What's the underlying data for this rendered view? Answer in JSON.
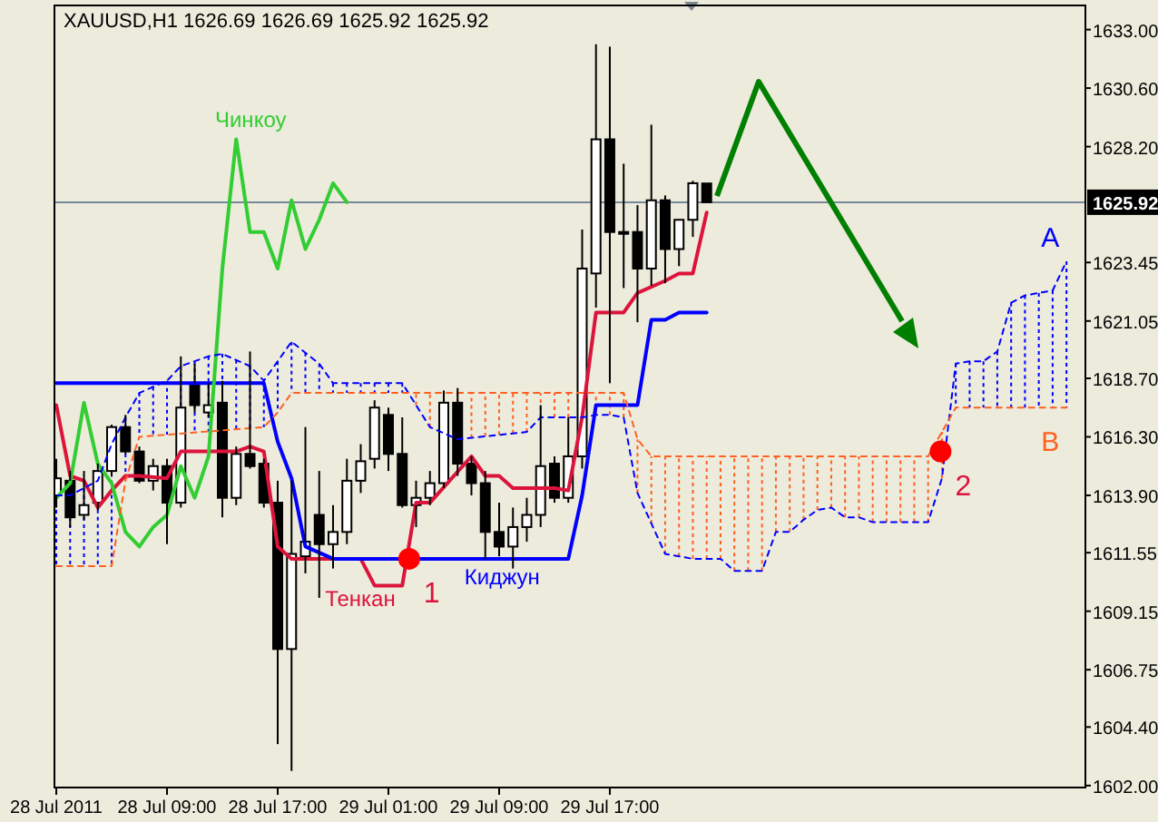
{
  "chart_data": {
    "type": "candlestick",
    "title": "XAUUSD,H1  1626.69 1626.69 1625.92 1625.92",
    "x": [
      "2011-07-28T01:00",
      "2011-07-28T02:00",
      "2011-07-28T03:00",
      "2011-07-28T04:00",
      "2011-07-28T05:00",
      "2011-07-28T06:00",
      "2011-07-28T07:00",
      "2011-07-28T08:00",
      "2011-07-28T09:00",
      "2011-07-28T10:00",
      "2011-07-28T11:00",
      "2011-07-28T12:00",
      "2011-07-28T13:00",
      "2011-07-28T14:00",
      "2011-07-28T15:00",
      "2011-07-28T16:00",
      "2011-07-28T17:00",
      "2011-07-28T18:00",
      "2011-07-28T19:00",
      "2011-07-28T20:00",
      "2011-07-28T21:00",
      "2011-07-28T22:00",
      "2011-07-28T23:00",
      "2011-07-29T00:00",
      "2011-07-29T01:00",
      "2011-07-29T02:00",
      "2011-07-29T03:00",
      "2011-07-29T04:00",
      "2011-07-29T05:00",
      "2011-07-29T06:00",
      "2011-07-29T07:00",
      "2011-07-29T08:00",
      "2011-07-29T09:00",
      "2011-07-29T10:00",
      "2011-07-29T11:00",
      "2011-07-29T12:00",
      "2011-07-29T13:00",
      "2011-07-29T14:00",
      "2011-07-29T15:00",
      "2011-07-29T16:00",
      "2011-07-29T17:00",
      "2011-07-29T18:00",
      "2011-07-29T19:00",
      "2011-07-29T20:00",
      "2011-07-29T21:00",
      "2011-07-29T22:00",
      "2011-07-29T23:00",
      "2011-07-30T00:00"
    ],
    "ohlc": [
      [
        1613.9,
        1615.4,
        1613.4,
        1614.6
      ],
      [
        1614.5,
        1614.9,
        1612.6,
        1613.0
      ],
      [
        1613.1,
        1614.9,
        1612.9,
        1613.5
      ],
      [
        1613.6,
        1615.2,
        1613.3,
        1614.9
      ],
      [
        1614.9,
        1616.8,
        1614.7,
        1616.7
      ],
      [
        1616.7,
        1617.2,
        1615.6,
        1615.7
      ],
      [
        1615.7,
        1615.9,
        1614.4,
        1614.5
      ],
      [
        1614.5,
        1615.4,
        1614.1,
        1615.1
      ],
      [
        1615.1,
        1615.4,
        1611.9,
        1613.6
      ],
      [
        1613.6,
        1619.6,
        1613.4,
        1617.5
      ],
      [
        1618.5,
        1619.3,
        1617.3,
        1617.6
      ],
      [
        1617.3,
        1618.5,
        1617.1,
        1617.6
      ],
      [
        1617.7,
        1618.6,
        1613.0,
        1613.8
      ],
      [
        1613.8,
        1615.9,
        1613.5,
        1615.6
      ],
      [
        1615.6,
        1619.8,
        1615.0,
        1615.1
      ],
      [
        1615.2,
        1615.4,
        1613.4,
        1613.6
      ],
      [
        1613.6,
        1614.5,
        1603.7,
        1607.6
      ],
      [
        1607.6,
        1614.5,
        1602.6,
        1611.5
      ],
      [
        1611.4,
        1616.7,
        1610.7,
        1612.0
      ],
      [
        1613.1,
        1614.9,
        1609.7,
        1611.9
      ],
      [
        1611.9,
        1613.5,
        1610.9,
        1612.4
      ],
      [
        1612.4,
        1615.4,
        1611.9,
        1614.5
      ],
      [
        1614.5,
        1616.0,
        1614.0,
        1615.3
      ],
      [
        1615.4,
        1617.8,
        1615.0,
        1617.5
      ],
      [
        1617.2,
        1617.5,
        1614.9,
        1615.6
      ],
      [
        1615.6,
        1617.1,
        1613.4,
        1613.5
      ],
      [
        1613.5,
        1614.5,
        1612.6,
        1613.8
      ],
      [
        1613.8,
        1614.9,
        1613.5,
        1614.4
      ],
      [
        1614.4,
        1618.2,
        1614.2,
        1617.7
      ],
      [
        1617.7,
        1618.3,
        1614.7,
        1615.2
      ],
      [
        1615.2,
        1615.5,
        1613.9,
        1614.4
      ],
      [
        1614.4,
        1614.9,
        1611.3,
        1612.4
      ],
      [
        1612.4,
        1613.6,
        1611.4,
        1611.8
      ],
      [
        1611.8,
        1613.4,
        1610.9,
        1612.6
      ],
      [
        1612.6,
        1613.8,
        1612.0,
        1613.1
      ],
      [
        1613.1,
        1617.6,
        1612.6,
        1615.1
      ],
      [
        1615.2,
        1615.5,
        1613.6,
        1613.8
      ],
      [
        1613.8,
        1617.1,
        1613.6,
        1615.5
      ],
      [
        1615.5,
        1624.8,
        1615.0,
        1623.2
      ],
      [
        1623.0,
        1632.4,
        1621.6,
        1628.5
      ],
      [
        1628.5,
        1632.3,
        1618.5,
        1624.7
      ],
      [
        1624.7,
        1627.5,
        1622.4,
        1624.7
      ],
      [
        1624.7,
        1625.8,
        1621.0,
        1623.2
      ],
      [
        1623.2,
        1629.1,
        1622.5,
        1626.0
      ],
      [
        1626.0,
        1626.2,
        1622.6,
        1624.0
      ],
      [
        1624.0,
        1625.2,
        1623.3,
        1625.2
      ],
      [
        1625.2,
        1626.8,
        1624.5,
        1626.7
      ],
      [
        1626.69,
        1626.69,
        1625.92,
        1625.92
      ]
    ],
    "series": [
      {
        "type": "line",
        "name": "Тенкан",
        "color": "#dc143c",
        "x": [
          "2011-07-28T01:00",
          "2011-07-28T02:00",
          "2011-07-28T03:00",
          "2011-07-28T04:00",
          "2011-07-28T05:00",
          "2011-07-28T06:00",
          "2011-07-28T07:00",
          "2011-07-28T09:00",
          "2011-07-28T10:00",
          "2011-07-28T14:00",
          "2011-07-28T15:00",
          "2011-07-28T16:00",
          "2011-07-28T17:00",
          "2011-07-28T18:00",
          "2011-07-28T23:00",
          "2011-07-29T00:00",
          "2011-07-29T02:00",
          "2011-07-29T03:00",
          "2011-07-29T04:00",
          "2011-07-29T07:00",
          "2011-07-29T08:00",
          "2011-07-29T09:00",
          "2011-07-29T10:00",
          "2011-07-29T13:00",
          "2011-07-29T14:00",
          "2011-07-29T15:00",
          "2011-07-29T16:00",
          "2011-07-29T18:00",
          "2011-07-29T19:00",
          "2011-07-29T21:00",
          "2011-07-29T22:00",
          "2011-07-29T23:00",
          "2011-07-30T00:00"
        ],
        "values": [
          1617.6,
          1614.7,
          1614.5,
          1613.4,
          1614.1,
          1614.7,
          1614.7,
          1614.6,
          1615.7,
          1615.7,
          1615.9,
          1615.7,
          1611.8,
          1611.3,
          1611.3,
          1610.2,
          1610.2,
          1613.6,
          1613.6,
          1615.5,
          1614.7,
          1614.7,
          1614.2,
          1614.2,
          1614.1,
          1617.1,
          1621.4,
          1621.4,
          1622.2,
          1622.7,
          1623.0,
          1623.0,
          1625.5
        ]
      },
      {
        "type": "line",
        "name": "Киджун",
        "color": "#0000ff",
        "x": [
          "2011-07-28T01:00",
          "2011-07-28T16:00",
          "2011-07-28T17:00",
          "2011-07-28T18:00",
          "2011-07-28T19:00",
          "2011-07-28T21:00",
          "2011-07-29T14:00",
          "2011-07-29T15:00",
          "2011-07-29T16:00",
          "2011-07-29T19:00",
          "2011-07-29T20:00",
          "2011-07-29T21:00",
          "2011-07-29T22:00",
          "2011-07-30T00:00"
        ],
        "values": [
          1618.5,
          1618.5,
          1616.1,
          1614.6,
          1611.8,
          1611.3,
          1611.3,
          1613.9,
          1617.6,
          1617.6,
          1621.1,
          1621.1,
          1621.4,
          1621.4
        ]
      },
      {
        "type": "line",
        "name": "Чинкоу",
        "color": "#32cd32",
        "x": [
          "2011-07-28T01:00",
          "2011-07-28T02:00",
          "2011-07-28T03:00",
          "2011-07-28T04:00",
          "2011-07-28T05:00",
          "2011-07-28T06:00",
          "2011-07-28T07:00",
          "2011-07-28T08:00",
          "2011-07-28T09:00",
          "2011-07-28T10:00",
          "2011-07-28T11:00",
          "2011-07-28T12:00",
          "2011-07-28T13:00",
          "2011-07-28T14:00",
          "2011-07-28T15:00",
          "2011-07-28T16:00",
          "2011-07-28T17:00",
          "2011-07-28T18:00",
          "2011-07-28T19:00",
          "2011-07-28T20:00",
          "2011-07-28T21:00",
          "2011-07-28T22:00"
        ],
        "values": [
          1613.8,
          1614.4,
          1617.7,
          1615.2,
          1614.4,
          1612.4,
          1611.8,
          1612.6,
          1613.1,
          1615.1,
          1613.8,
          1615.5,
          1623.2,
          1628.5,
          1624.7,
          1624.7,
          1623.2,
          1626.0,
          1624.0,
          1625.2,
          1626.7,
          1625.92
        ]
      },
      {
        "type": "line",
        "name": "A",
        "color": "#0000ff",
        "line_style": "dashed",
        "x": [
          "2011-07-28T01:00",
          "2011-07-28T02:00",
          "2011-07-28T04:00",
          "2011-07-28T05:00",
          "2011-07-28T06:00",
          "2011-07-28T07:00",
          "2011-07-28T09:00",
          "2011-07-28T10:00",
          "2011-07-28T12:00",
          "2011-07-28T13:00",
          "2011-07-28T15:00",
          "2011-07-28T16:00",
          "2011-07-28T18:00",
          "2011-07-28T20:00",
          "2011-07-28T21:00",
          "2011-07-29T02:00",
          "2011-07-29T04:00",
          "2011-07-29T06:00",
          "2011-07-29T11:00",
          "2011-07-29T12:00",
          "2011-07-29T15:00",
          "2011-07-29T16:00",
          "2011-07-29T17:00",
          "2011-07-29T18:00",
          "2011-07-29T19:00",
          "2011-07-29T21:00",
          "2011-07-29T23:00",
          "2011-07-30T01:00",
          "2011-07-30T02:00",
          "2011-07-30T04:00",
          "2011-07-30T05:00",
          "2011-07-30T06:00",
          "2011-07-30T07:00",
          "2011-07-30T08:00",
          "2011-07-30T09:00",
          "2011-07-30T10:00",
          "2011-07-30T11:00",
          "2011-07-30T12:00",
          "2011-07-30T16:00",
          "2011-07-30T17:00",
          "2011-07-30T18:00",
          "2011-07-30T19:00",
          "2011-07-30T20:00",
          "2011-07-30T21:00",
          "2011-07-30T22:00",
          "2011-07-30T23:00",
          "2011-07-31T00:00",
          "2011-07-31T01:00",
          "2011-07-31T02:00"
        ],
        "values": [
          1613.9,
          1613.9,
          1614.5,
          1616.0,
          1617.1,
          1618.1,
          1618.6,
          1619.2,
          1619.6,
          1619.7,
          1619.2,
          1618.6,
          1620.2,
          1619.3,
          1618.5,
          1618.5,
          1616.7,
          1616.2,
          1616.5,
          1617.1,
          1617.1,
          1617.2,
          1617.2,
          1617.1,
          1614.0,
          1611.5,
          1611.3,
          1611.3,
          1610.8,
          1610.8,
          1612.4,
          1612.4,
          1612.9,
          1613.3,
          1613.4,
          1613.0,
          1613.0,
          1612.8,
          1612.8,
          1614.6,
          1619.3,
          1619.4,
          1619.4,
          1619.8,
          1621.8,
          1622.1,
          1622.2,
          1622.3,
          1623.5
        ]
      },
      {
        "type": "line",
        "name": "B",
        "color": "#ff6020",
        "line_style": "dashed",
        "x": [
          "2011-07-28T01:00",
          "2011-07-28T05:00",
          "2011-07-28T06:00",
          "2011-07-28T07:00",
          "2011-07-28T16:00",
          "2011-07-28T17:00",
          "2011-07-28T18:00",
          "2011-07-29T18:00",
          "2011-07-29T19:00",
          "2011-07-29T20:00",
          "2011-07-30T16:00",
          "2011-07-30T18:00",
          "2011-07-31T02:00"
        ],
        "values": [
          1611.0,
          1611.0,
          1614.5,
          1616.3,
          1616.7,
          1617.3,
          1618.1,
          1618.1,
          1616.2,
          1615.5,
          1615.5,
          1617.5,
          1617.5
        ]
      },
      {
        "type": "scatter",
        "color": "#ff0000",
        "marker": "circle",
        "x": [
          "2011-07-29T02:30",
          "2011-07-30T16:54"
        ],
        "values": [
          1611.3,
          1615.7
        ]
      }
    ],
    "annotations": [
      {
        "text": "1",
        "x": "2011-07-29T02:30",
        "y": 1611.3
      },
      {
        "text": "2",
        "x": "2011-07-30T16:54",
        "y": 1615.7
      }
    ],
    "ref_lines": [
      {
        "axis": "y",
        "value": 1625.92,
        "label": "1625.92",
        "color": "#778899"
      }
    ],
    "xlim": [
      "2011-07-28T00:52",
      "2011-07-31T03:22"
    ],
    "xticks": [
      {
        "value": "2011-07-28T01:00",
        "label": "28 Jul 2011"
      },
      {
        "value": "2011-07-28T09:00",
        "label": "28 Jul 09:00"
      },
      {
        "value": "2011-07-28T17:00",
        "label": "28 Jul 17:00"
      },
      {
        "value": "2011-07-29T01:00",
        "label": "29 Jul 01:00"
      },
      {
        "value": "2011-07-29T09:00",
        "label": "29 Jul 09:00"
      },
      {
        "value": "2011-07-29T17:00",
        "label": "29 Jul 17:00"
      }
    ],
    "ylim": [
      1601.92,
      1633.99
    ],
    "yticks": [
      {
        "value": 1602,
        "label": "1602.00"
      },
      {
        "value": 1604.4,
        "label": "1604.40"
      },
      {
        "value": 1606.75,
        "label": "1606.75"
      },
      {
        "value": 1609.15,
        "label": "1609.15"
      },
      {
        "value": 1611.55,
        "label": "1611.55"
      },
      {
        "value": 1613.9,
        "label": "1613.90"
      },
      {
        "value": 1616.3,
        "label": "1616.30"
      },
      {
        "value": 1618.7,
        "label": "1618.70"
      },
      {
        "value": 1621.05,
        "label": "1621.05"
      },
      {
        "value": 1623.45,
        "label": "1623.45"
      },
      {
        "value": 1628.2,
        "label": "1628.20"
      },
      {
        "value": 1630.6,
        "label": "1630.60"
      },
      {
        "value": 1633,
        "label": "1633.00"
      }
    ]
  }
}
